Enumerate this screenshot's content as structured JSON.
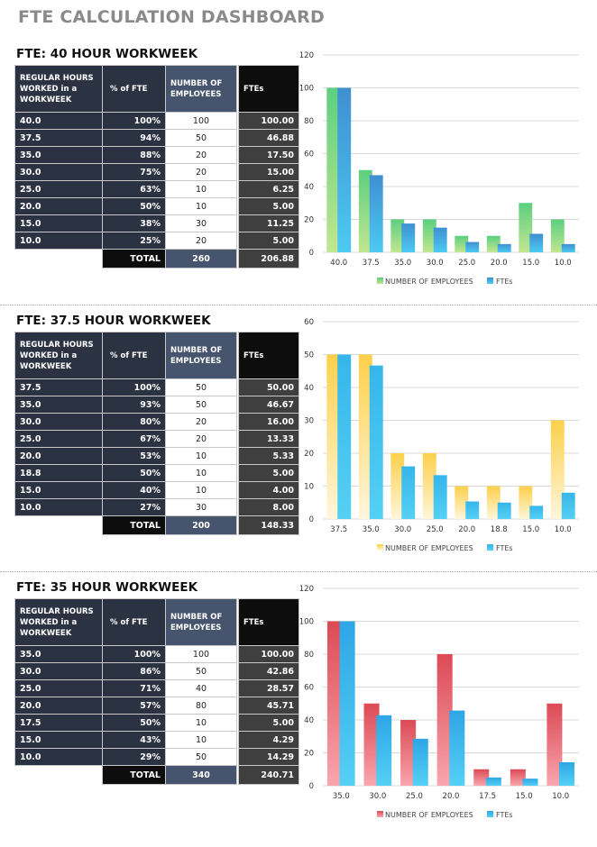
{
  "page_title": "FTE CALCULATION DASHBOARD",
  "headers": [
    "REGULAR HOURS WORKED in a WORKWEEK",
    "% of FTE",
    "NUMBER OF EMPLOYEES",
    "FTEs"
  ],
  "legend": [
    "NUMBER OF EMPLOYEES",
    "FTEs"
  ],
  "sections": [
    {
      "title": "FTE: 40 HOUR WORKWEEK",
      "rows": [
        [
          "40.0",
          "100%",
          "100",
          "100.00"
        ],
        [
          "37.5",
          "94%",
          "50",
          "46.88"
        ],
        [
          "35.0",
          "88%",
          "20",
          "17.50"
        ],
        [
          "30.0",
          "75%",
          "20",
          "15.00"
        ],
        [
          "25.0",
          "63%",
          "10",
          "6.25"
        ],
        [
          "20.0",
          "50%",
          "10",
          "5.00"
        ],
        [
          "15.0",
          "38%",
          "30",
          "11.25"
        ],
        [
          "10.0",
          "25%",
          "20",
          "5.00"
        ]
      ],
      "total": {
        "label": "TOTAL",
        "employees": "260",
        "ftes": "206.88"
      },
      "chart_data": {
        "type": "bar",
        "categories": [
          "40.0",
          "37.5",
          "35.0",
          "30.0",
          "25.0",
          "20.0",
          "15.0",
          "10.0"
        ],
        "series": [
          {
            "name": "NUMBER OF EMPLOYEES",
            "values": [
              100,
              50,
              20,
              20,
              10,
              10,
              30,
              20
            ]
          },
          {
            "name": "FTEs",
            "values": [
              100,
              46.88,
              17.5,
              15,
              6.25,
              5,
              11.25,
              5
            ]
          }
        ],
        "ylim": [
          0,
          120
        ],
        "yticks": [
          0,
          20,
          40,
          60,
          80,
          100,
          120
        ],
        "grid": true,
        "legend": "bottom",
        "colors": {
          "employees": [
            "#5ccf80",
            "#c2e690"
          ],
          "ftes": [
            "#3f8fd0",
            "#4ccaf2"
          ]
        }
      }
    },
    {
      "title": "FTE: 37.5 HOUR WORKWEEK",
      "rows": [
        [
          "37.5",
          "100%",
          "50",
          "50.00"
        ],
        [
          "35.0",
          "93%",
          "50",
          "46.67"
        ],
        [
          "30.0",
          "80%",
          "20",
          "16.00"
        ],
        [
          "25.0",
          "67%",
          "20",
          "13.33"
        ],
        [
          "20.0",
          "53%",
          "10",
          "5.33"
        ],
        [
          "18.8",
          "50%",
          "10",
          "5.00"
        ],
        [
          "15.0",
          "40%",
          "10",
          "4.00"
        ],
        [
          "10.0",
          "27%",
          "30",
          "8.00"
        ]
      ],
      "total": {
        "label": "TOTAL",
        "employees": "200",
        "ftes": "148.33"
      },
      "chart_data": {
        "type": "bar",
        "categories": [
          "37.5",
          "35.0",
          "30.0",
          "25.0",
          "20.0",
          "18.8",
          "15.0",
          "10.0"
        ],
        "series": [
          {
            "name": "NUMBER OF EMPLOYEES",
            "values": [
              50,
              50,
              20,
              20,
              10,
              10,
              10,
              30
            ]
          },
          {
            "name": "FTEs",
            "values": [
              50,
              46.67,
              16,
              13.33,
              5.33,
              5,
              4,
              8
            ]
          }
        ],
        "ylim": [
          0,
          60
        ],
        "yticks": [
          0,
          10,
          20,
          30,
          40,
          50,
          60
        ],
        "grid": true,
        "legend": "bottom",
        "colors": {
          "employees": [
            "#fcd04a",
            "#fff6dc"
          ],
          "ftes": [
            "#35b6ea",
            "#55d0f5"
          ]
        }
      }
    },
    {
      "title": "FTE: 35 HOUR WORKWEEK",
      "rows": [
        [
          "35.0",
          "100%",
          "100",
          "100.00"
        ],
        [
          "30.0",
          "86%",
          "50",
          "42.86"
        ],
        [
          "25.0",
          "71%",
          "40",
          "28.57"
        ],
        [
          "20.0",
          "57%",
          "80",
          "45.71"
        ],
        [
          "17.5",
          "50%",
          "10",
          "5.00"
        ],
        [
          "15.0",
          "43%",
          "10",
          "4.29"
        ],
        [
          "10.0",
          "29%",
          "50",
          "14.29"
        ]
      ],
      "total": {
        "label": "TOTAL",
        "employees": "340",
        "ftes": "240.71"
      },
      "chart_data": {
        "type": "bar",
        "categories": [
          "35.0",
          "30.0",
          "25.0",
          "20.0",
          "17.5",
          "15.0",
          "10.0"
        ],
        "series": [
          {
            "name": "NUMBER OF EMPLOYEES",
            "values": [
              100,
              50,
              40,
              80,
              10,
              10,
              50
            ]
          },
          {
            "name": "FTEs",
            "values": [
              100,
              42.86,
              28.57,
              45.71,
              5,
              4.29,
              14.29
            ]
          }
        ],
        "ylim": [
          0,
          120
        ],
        "yticks": [
          0,
          20,
          40,
          60,
          80,
          100,
          120
        ],
        "grid": true,
        "legend": "bottom",
        "colors": {
          "employees": [
            "#dc4a55",
            "#f9a6ae"
          ],
          "ftes": [
            "#2ea6e6",
            "#55d0f5"
          ]
        }
      }
    }
  ]
}
